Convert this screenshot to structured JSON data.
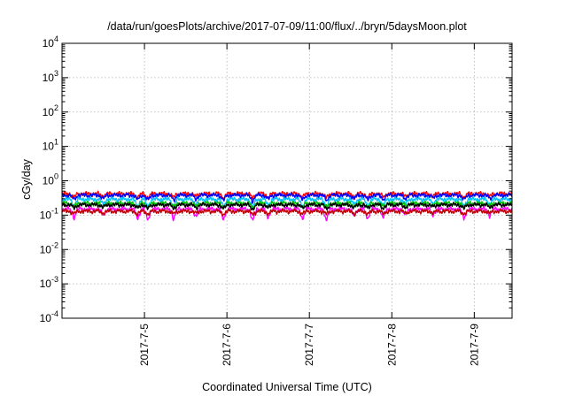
{
  "chart_data": {
    "type": "line",
    "title": "/data/run/goesPlots/archive/2017-07-09/11:00/flux/../bryn/5daysMoon.plot",
    "xlabel": "Coordinated Universal Time (UTC)",
    "ylabel": "cGy/day",
    "y_scale": "log",
    "ylim": [
      0.0001,
      10000
    ],
    "y_ticks": [
      {
        "value": 0.0001,
        "base": "10",
        "exp": "-4"
      },
      {
        "value": 0.001,
        "base": "10",
        "exp": "-3"
      },
      {
        "value": 0.01,
        "base": "10",
        "exp": "-2"
      },
      {
        "value": 0.1,
        "base": "10",
        "exp": "-1"
      },
      {
        "value": 1,
        "base": "10",
        "exp": "0"
      },
      {
        "value": 10,
        "base": "10",
        "exp": "1"
      },
      {
        "value": 100,
        "base": "10",
        "exp": "2"
      },
      {
        "value": 1000,
        "base": "10",
        "exp": "3"
      },
      {
        "value": 10000,
        "base": "10",
        "exp": "4"
      }
    ],
    "xlim": [
      "2017-07-04 00:00",
      "2017-07-09 11:00"
    ],
    "x_ticks": [
      {
        "value": "2017-07-05 00:00",
        "label": "2017-7-5"
      },
      {
        "value": "2017-07-06 00:00",
        "label": "2017-7-6"
      },
      {
        "value": "2017-07-07 00:00",
        "label": "2017-7-7"
      },
      {
        "value": "2017-07-08 00:00",
        "label": "2017-7-8"
      },
      {
        "value": "2017-07-09 00:00",
        "label": "2017-7-9"
      }
    ],
    "grid": true,
    "legend": "none",
    "series": [
      {
        "color": "#ff0000",
        "level": 0.42,
        "dip_scale": 0.2
      },
      {
        "color": "#0000ff",
        "level": 0.38,
        "dip_scale": 0.25
      },
      {
        "color": "#00bfff",
        "level": 0.29,
        "dip_scale": 0.35
      },
      {
        "color": "#00c000",
        "level": 0.22,
        "dip_scale": 0.2
      },
      {
        "color": "#000000",
        "level": 0.2,
        "dip_scale": 0.2
      },
      {
        "color": "#ff00ff",
        "level": 0.15,
        "dip_scale": 0.45
      },
      {
        "color": "#c00000",
        "level": 0.13,
        "dip_scale": 0.15
      }
    ],
    "dips": [
      {
        "time": "2017-07-04 03:30",
        "depth": 0.5
      },
      {
        "time": "2017-07-04 12:00",
        "depth": 0.4
      },
      {
        "time": "2017-07-04 22:00",
        "depth": 0.55
      },
      {
        "time": "2017-07-05 01:00",
        "depth": 0.6
      },
      {
        "time": "2017-07-05 08:30",
        "depth": 0.55
      },
      {
        "time": "2017-07-05 15:00",
        "depth": 0.45
      },
      {
        "time": "2017-07-05 23:00",
        "depth": 0.6
      },
      {
        "time": "2017-07-06 07:30",
        "depth": 0.65
      },
      {
        "time": "2017-07-06 12:00",
        "depth": 0.5
      },
      {
        "time": "2017-07-06 22:00",
        "depth": 0.55
      },
      {
        "time": "2017-07-07 05:00",
        "depth": 0.6
      },
      {
        "time": "2017-07-07 13:00",
        "depth": 0.45
      },
      {
        "time": "2017-07-07 17:00",
        "depth": 0.55
      },
      {
        "time": "2017-07-07 21:30",
        "depth": 0.5
      },
      {
        "time": "2017-07-08 04:00",
        "depth": 0.4
      },
      {
        "time": "2017-07-08 12:00",
        "depth": 0.35
      },
      {
        "time": "2017-07-08 21:00",
        "depth": 0.55
      },
      {
        "time": "2017-07-09 04:30",
        "depth": 0.4
      }
    ]
  }
}
